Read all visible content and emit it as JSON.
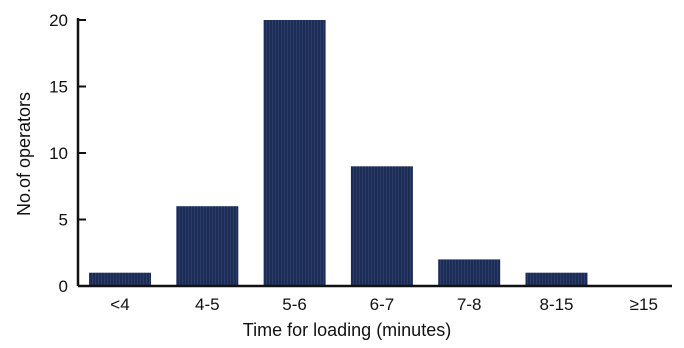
{
  "chart_data": {
    "type": "bar",
    "categories": [
      "<4",
      "4-5",
      "5-6",
      "6-7",
      "7-8",
      "8-15",
      "≥15"
    ],
    "values": [
      1,
      6,
      20,
      9,
      2,
      1,
      0
    ],
    "xlabel": "Time for loading (minutes)",
    "ylabel": "No.of operators",
    "ylim": [
      0,
      20
    ],
    "yticks": [
      0,
      5,
      10,
      15,
      20
    ],
    "grid": false,
    "bar_color": "#1c2c54"
  }
}
